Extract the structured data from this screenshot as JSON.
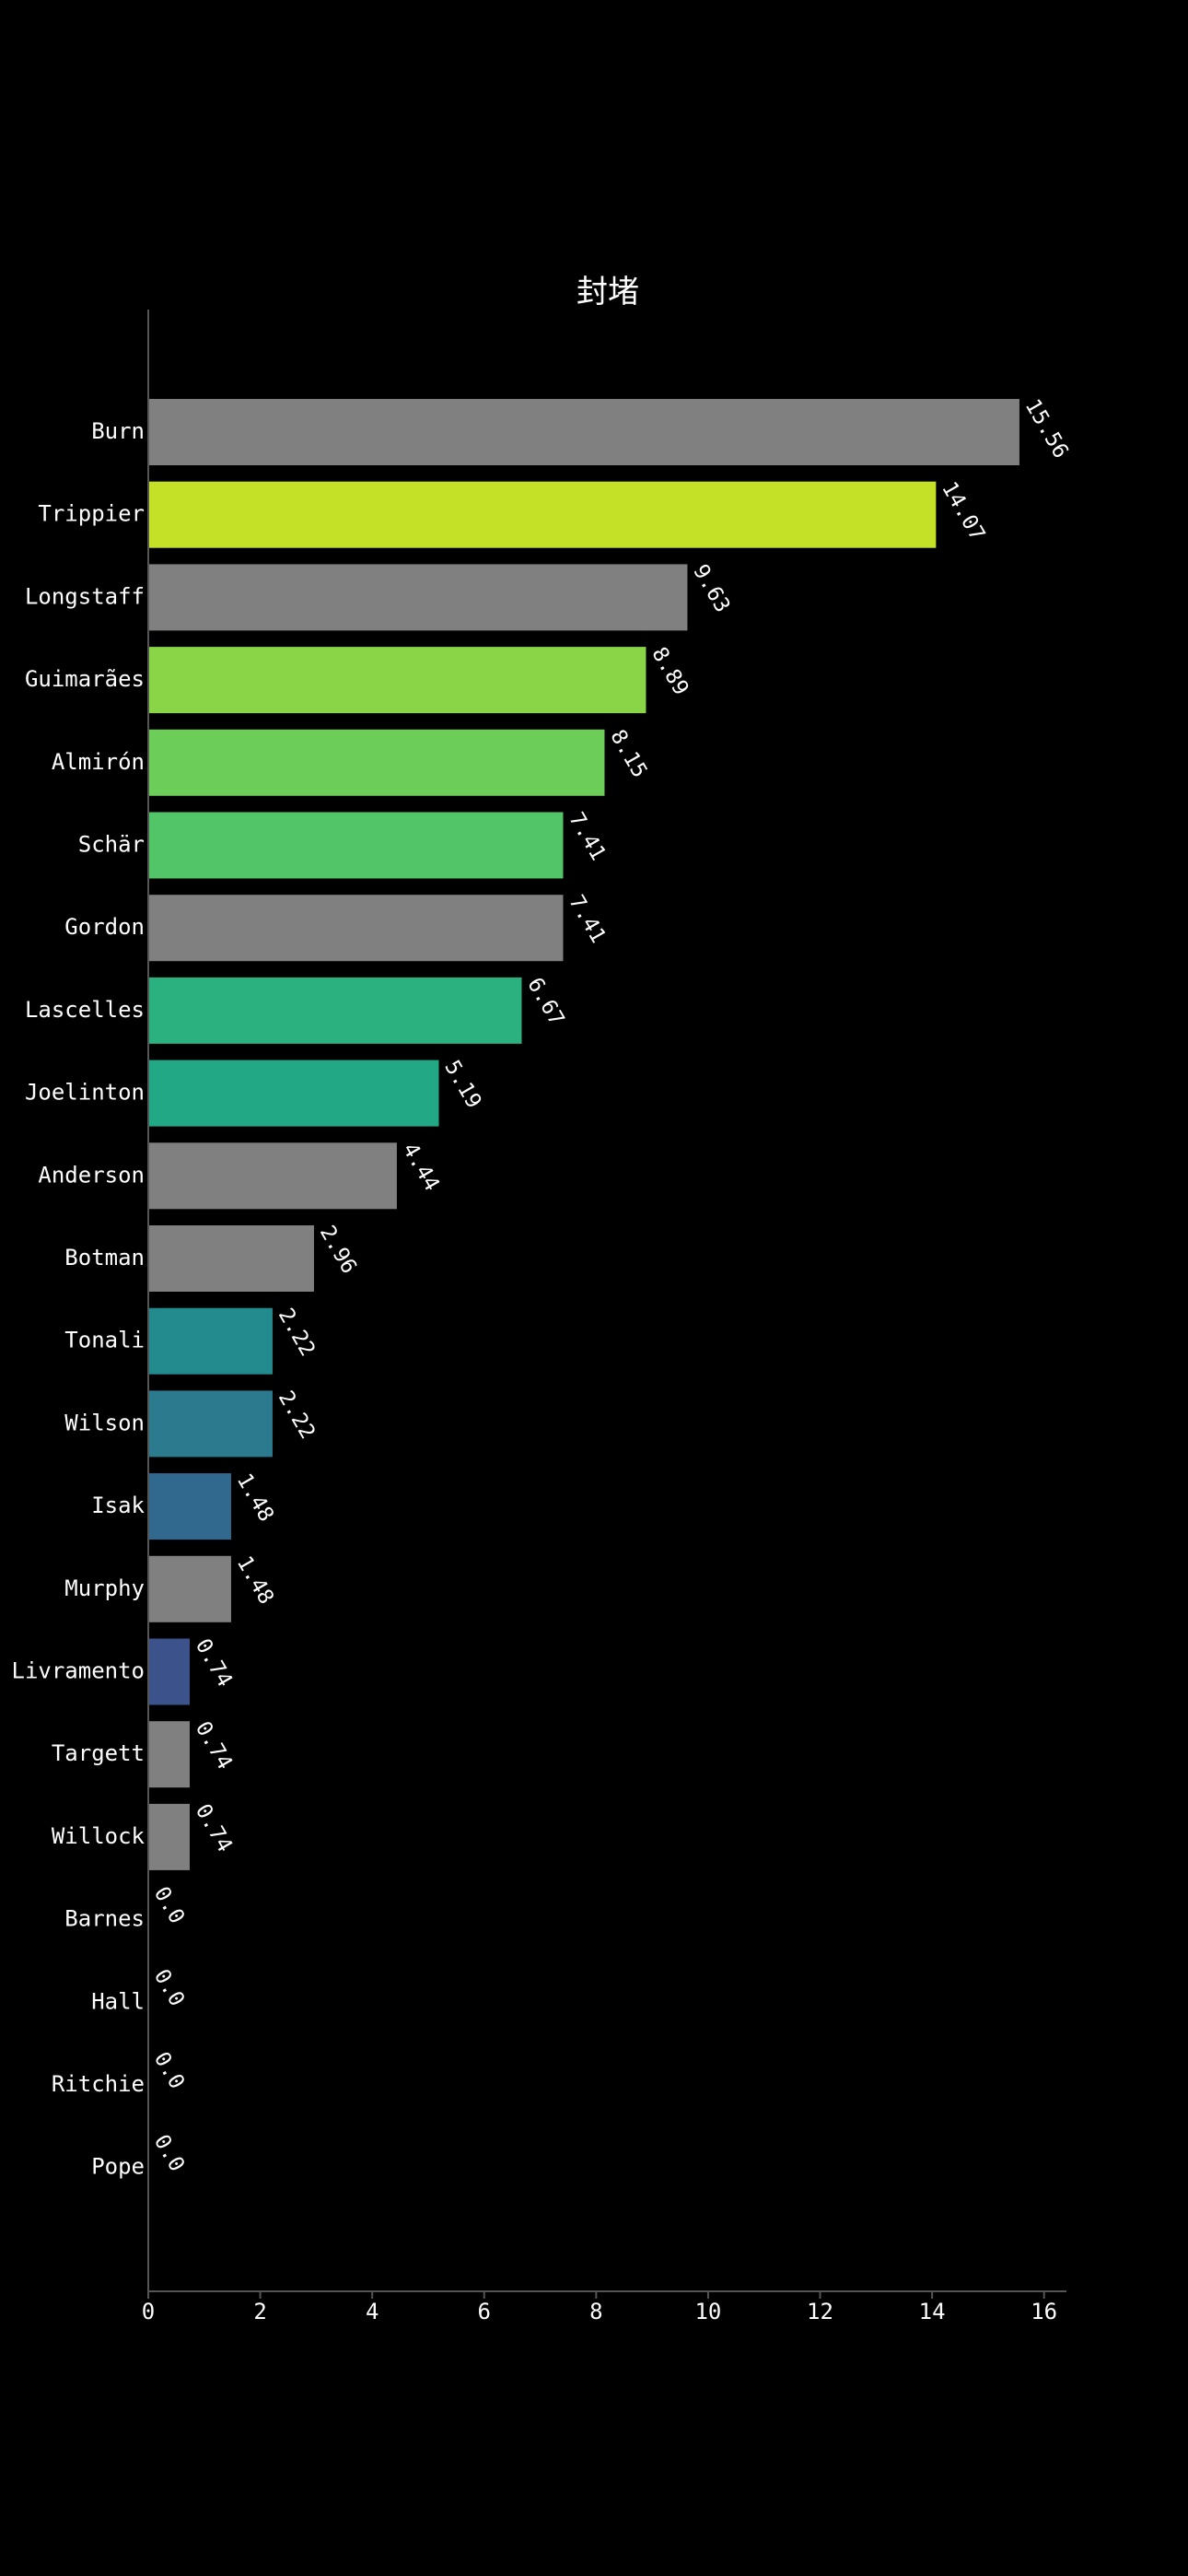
{
  "chart_data": {
    "type": "bar",
    "orientation": "horizontal",
    "title": "封堵",
    "xlabel": "",
    "ylabel": "",
    "xlim": [
      0,
      16.4
    ],
    "xticks": [
      0,
      2,
      4,
      6,
      8,
      10,
      12,
      14,
      16
    ],
    "grid": false,
    "categories": [
      "Burn",
      "Trippier",
      "Longstaff",
      "Guimarães",
      "Almirón",
      "Schär",
      "Gordon",
      "Lascelles",
      "Joelinton",
      "Anderson",
      "Botman",
      "Tonali",
      "Wilson",
      "Isak",
      "Murphy",
      "Livramento",
      "Targett",
      "Willock",
      "Barnes",
      "Hall",
      "Ritchie",
      "Pope"
    ],
    "values": [
      15.56,
      14.07,
      9.63,
      8.89,
      8.15,
      7.41,
      7.41,
      6.67,
      5.19,
      4.44,
      2.96,
      2.22,
      2.22,
      1.48,
      1.48,
      0.74,
      0.74,
      0.74,
      0.0,
      0.0,
      0.0,
      0.0
    ],
    "value_labels": [
      "15.56",
      "14.07",
      "9.63",
      "8.89",
      "8.15",
      "7.41",
      "7.41",
      "6.67",
      "5.19",
      "4.44",
      "2.96",
      "2.22",
      "2.22",
      "1.48",
      "1.48",
      "0.74",
      "0.74",
      "0.74",
      "0.0",
      "0.0",
      "0.0",
      "0.0"
    ],
    "colors": [
      "#808080",
      "#c5e127",
      "#808080",
      "#8ad547",
      "#6ccd59",
      "#52c569",
      "#808080",
      "#2bb07f",
      "#22a884",
      "#808080",
      "#808080",
      "#238a8d",
      "#2c7a8e",
      "#31688e",
      "#808080",
      "#3b528b",
      "#808080",
      "#808080",
      "#808080",
      "#808080",
      "#808080",
      "#808080"
    ],
    "background": "#000000",
    "text_color": "#ffffff"
  }
}
